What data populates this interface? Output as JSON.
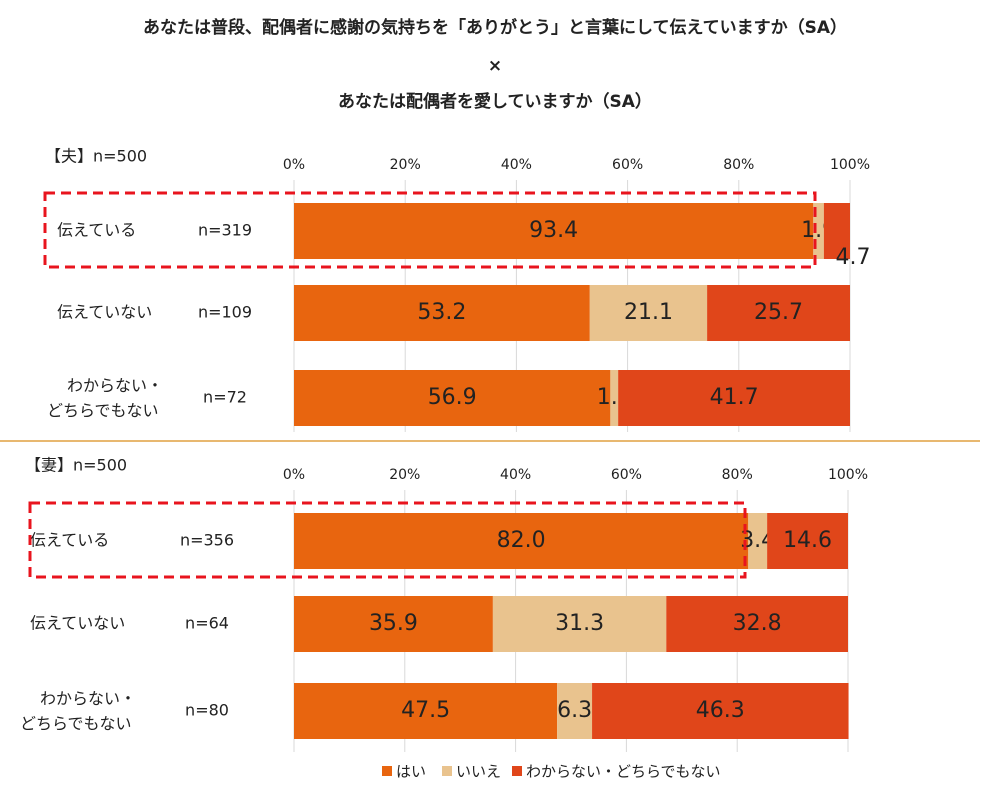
{
  "title": [
    "あなたは普段、配偶者に感謝の気持ちを「ありがとう」と言葉にして伝えていますか（SA）",
    "×",
    "あなたは配偶者を愛していますか（SA）"
  ],
  "chart_data": [
    {
      "type": "stacked-bar-horizontal",
      "subtitle": "【夫】n=500",
      "categories": [
        "伝えている",
        "伝えていない",
        "わからない・どちらでもない"
      ],
      "n_labels": [
        "n=319",
        "n=109",
        "n=72"
      ],
      "xlim": [
        0,
        100
      ],
      "xticks": [
        {
          "value": 0,
          "label": "0%"
        },
        {
          "value": 20,
          "label": "20%"
        },
        {
          "value": 40,
          "label": "40%"
        },
        {
          "value": 60,
          "label": "60%"
        },
        {
          "value": 80,
          "label": "80%"
        },
        {
          "value": 100,
          "label": "100%"
        }
      ],
      "grid": true,
      "series": [
        {
          "color": "#e8650f",
          "values": [
            93.4,
            53.2,
            56.9
          ]
        },
        {
          "color": "#e9c38e",
          "values": [
            1.9,
            21.1,
            1.4
          ]
        },
        {
          "color": "#e0461a",
          "values": [
            4.7,
            25.7,
            41.7
          ]
        }
      ]
    },
    {
      "type": "stacked-bar-horizontal",
      "subtitle": "【妻】n=500",
      "categories": [
        "伝えている",
        "伝えていない",
        "わからない・どちらでもない"
      ],
      "n_labels": [
        "n=356",
        "n=64",
        "n=80"
      ],
      "xlim": [
        0,
        100
      ],
      "xticks": [
        {
          "value": 0,
          "label": "0%"
        },
        {
          "value": 20,
          "label": "20%"
        },
        {
          "value": 40,
          "label": "40%"
        },
        {
          "value": 60,
          "label": "60%"
        },
        {
          "value": 80,
          "label": "80%"
        },
        {
          "value": 100,
          "label": "100%"
        }
      ],
      "grid": true,
      "series": [
        {
          "name": "はい",
          "color": "#e8650f",
          "values": [
            82,
            35.9,
            47.5
          ],
          "value_labels": [
            "82.0",
            "35.9",
            "47.5"
          ]
        },
        {
          "name": "いいえ",
          "color": "#e9c38e",
          "values": [
            3.4,
            31.3,
            6.3
          ]
        },
        {
          "name": "わからない・どちらでもない",
          "color": "#e0461a",
          "values": [
            14.6,
            32.8,
            46.3
          ]
        }
      ]
    }
  ]
}
